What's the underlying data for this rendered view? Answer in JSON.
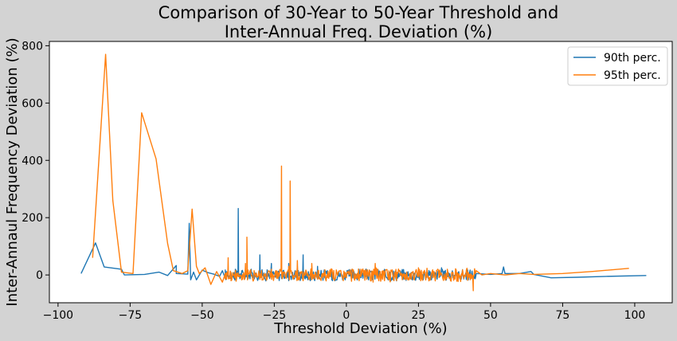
{
  "chart_data": {
    "type": "line",
    "title_line1": "Comparison of 30-Year to 50-Year Threshold and",
    "title_line2": "Inter-Annual Freq. Deviation (%)",
    "xlabel": "Threshold Deviation (%)",
    "ylabel": "Inter-Annaul Frequency Deviation (%)",
    "xlim": [
      -103,
      113
    ],
    "ylim": [
      -97,
      815
    ],
    "xticks": [
      -100,
      -75,
      -50,
      -25,
      0,
      25,
      50,
      75,
      100
    ],
    "yticks": [
      0,
      200,
      400,
      600,
      800
    ],
    "grid": false,
    "legend_position": "top-right",
    "background_color": "#d3d3d3",
    "axes_color": "#ffffff",
    "series": [
      {
        "name": "90th perc.",
        "color": "#1f77b4",
        "anchors": [
          [
            -92,
            5
          ],
          [
            -87,
            112
          ],
          [
            -84,
            28
          ],
          [
            -78,
            20
          ],
          [
            -77,
            0
          ],
          [
            -70,
            2
          ],
          [
            -65,
            10
          ],
          [
            -62,
            -2
          ],
          [
            -59,
            33
          ],
          [
            -59,
            5
          ],
          [
            -55,
            3
          ],
          [
            -54.5,
            180
          ],
          [
            -54,
            -17
          ],
          [
            -53,
            10
          ],
          [
            -52,
            -17
          ],
          [
            -50,
            17
          ],
          [
            -48,
            8
          ],
          [
            -46,
            3
          ],
          [
            -44,
            -5
          ],
          [
            -43,
            15
          ],
          [
            -42,
            -12
          ],
          [
            -40,
            8
          ],
          [
            -39,
            -12
          ],
          [
            -38.5,
            20
          ],
          [
            -37.5,
            232
          ],
          [
            -37,
            3
          ],
          [
            -35,
            4
          ],
          [
            -33,
            20
          ],
          [
            -32,
            -3
          ],
          [
            -30,
            70
          ],
          [
            -29,
            0
          ],
          [
            -27,
            5
          ],
          [
            -26,
            40
          ],
          [
            -24,
            -8
          ],
          [
            -22,
            8
          ],
          [
            -20,
            40
          ],
          [
            -18,
            5
          ],
          [
            -17,
            30
          ],
          [
            -15,
            70
          ],
          [
            -12,
            5
          ],
          [
            -10,
            30
          ],
          [
            -5,
            10
          ],
          [
            0,
            0
          ],
          [
            5,
            15
          ],
          [
            10,
            3
          ],
          [
            15,
            10
          ],
          [
            20,
            5
          ],
          [
            25,
            10
          ],
          [
            30,
            8
          ],
          [
            33,
            25
          ],
          [
            35,
            5
          ],
          [
            37,
            -10
          ],
          [
            40,
            5
          ],
          [
            45,
            5
          ],
          [
            50,
            2
          ],
          [
            54,
            5
          ],
          [
            54.5,
            28
          ],
          [
            55,
            5
          ],
          [
            60,
            5
          ],
          [
            64,
            12
          ],
          [
            65,
            2
          ],
          [
            71,
            -10
          ],
          [
            80,
            -8
          ],
          [
            90,
            -5
          ],
          [
            104,
            -2
          ]
        ],
        "dense_range": [
          -42,
          45
        ],
        "dense_amplitude": 18
      },
      {
        "name": "95th perc.",
        "color": "#ff7f0e",
        "anchors": [
          [
            -88,
            60
          ],
          [
            -83.5,
            770
          ],
          [
            -81,
            260
          ],
          [
            -78,
            10
          ],
          [
            -74,
            5
          ],
          [
            -71,
            566
          ],
          [
            -66,
            405
          ],
          [
            -62,
            110
          ],
          [
            -60,
            15
          ],
          [
            -57,
            5
          ],
          [
            -55,
            15
          ],
          [
            -53.5,
            230
          ],
          [
            -52,
            30
          ],
          [
            -51,
            5
          ],
          [
            -49,
            25
          ],
          [
            -47,
            -33
          ],
          [
            -45,
            12
          ],
          [
            -43,
            -25
          ],
          [
            -42,
            5
          ],
          [
            -41,
            60
          ],
          [
            -40,
            -20
          ],
          [
            -38,
            5
          ],
          [
            -36,
            -15
          ],
          [
            -35,
            40
          ],
          [
            -34.5,
            132
          ],
          [
            -34,
            5
          ],
          [
            -32,
            15
          ],
          [
            -30,
            -15
          ],
          [
            -28,
            5
          ],
          [
            -26,
            20
          ],
          [
            -24,
            -10
          ],
          [
            -22.5,
            380
          ],
          [
            -22,
            10
          ],
          [
            -20,
            30
          ],
          [
            -19.5,
            328
          ],
          [
            -19,
            5
          ],
          [
            -17,
            50
          ],
          [
            -15,
            -20
          ],
          [
            -12,
            40
          ],
          [
            -10,
            -15
          ],
          [
            -5,
            20
          ],
          [
            0,
            -10
          ],
          [
            5,
            20
          ],
          [
            10,
            40
          ],
          [
            15,
            -15
          ],
          [
            20,
            5
          ],
          [
            25,
            25
          ],
          [
            30,
            -10
          ],
          [
            35,
            20
          ],
          [
            40,
            5
          ],
          [
            43,
            -10
          ],
          [
            44,
            -55
          ],
          [
            45,
            15
          ],
          [
            47,
            0
          ],
          [
            50,
            5
          ],
          [
            55,
            0
          ],
          [
            60,
            5
          ],
          [
            65,
            2
          ],
          [
            75,
            5
          ],
          [
            85,
            12
          ],
          [
            98,
            23
          ]
        ],
        "dense_range": [
          -42,
          45
        ],
        "dense_amplitude": 22
      }
    ]
  }
}
